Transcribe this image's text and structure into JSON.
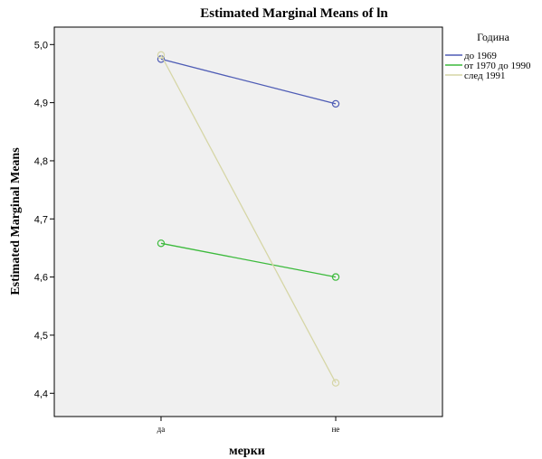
{
  "chart_data": {
    "type": "line",
    "title": "Estimated Marginal Means of ln",
    "xlabel": "мерки",
    "ylabel": "Estimated Marginal Means",
    "categories": [
      "да",
      "не"
    ],
    "ylim": [
      4.36,
      5.03
    ],
    "yticks": [
      "4,4",
      "4,5",
      "4,6",
      "4,7",
      "4,8",
      "4,9",
      "5,0"
    ],
    "ytick_values": [
      4.4,
      4.5,
      4.6,
      4.7,
      4.8,
      4.9,
      5.0
    ],
    "grid": false,
    "legend_title": "Година",
    "legend_position": "right",
    "series": [
      {
        "name": "до 1969",
        "values": [
          4.975,
          4.898
        ],
        "color": "#4e5cb5"
      },
      {
        "name": "от 1970 до 1990",
        "values": [
          4.658,
          4.6
        ],
        "color": "#3cba3c"
      },
      {
        "name": "след 1991",
        "values": [
          4.982,
          4.418
        ],
        "color": "#d6d6a6"
      }
    ]
  }
}
